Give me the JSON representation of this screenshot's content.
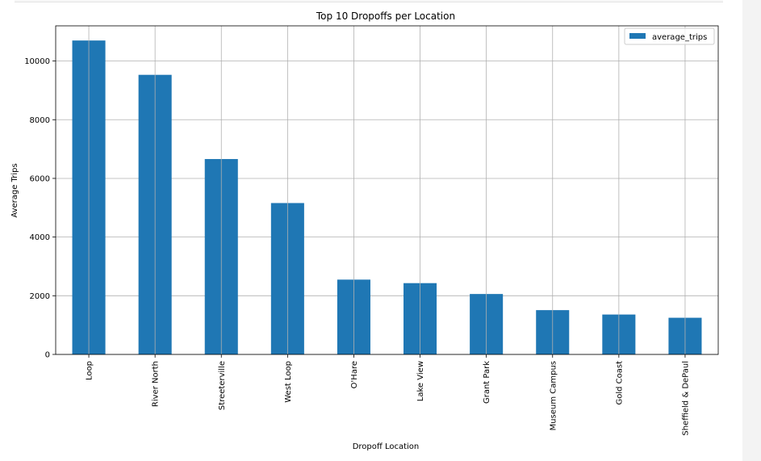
{
  "chart_data": {
    "type": "bar",
    "title": "Top 10 Dropoffs per Location",
    "xlabel": "Dropoff Location",
    "ylabel": "Average Trips",
    "categories": [
      "Loop",
      "River North",
      "Streeterville",
      "West Loop",
      "O'Hare",
      "Lake View",
      "Grant Park",
      "Museum Campus",
      "Gold Coast",
      "Sheffield & DePaul"
    ],
    "series": [
      {
        "name": "average_trips",
        "values": [
          10700,
          9530,
          6660,
          5160,
          2550,
          2430,
          2060,
          1510,
          1360,
          1250
        ],
        "color": "#1f77b4"
      }
    ],
    "yticks": [
      0,
      2000,
      4000,
      6000,
      8000,
      10000
    ],
    "ylim": [
      0,
      11200
    ],
    "grid": true,
    "legend_position": "top-right"
  }
}
